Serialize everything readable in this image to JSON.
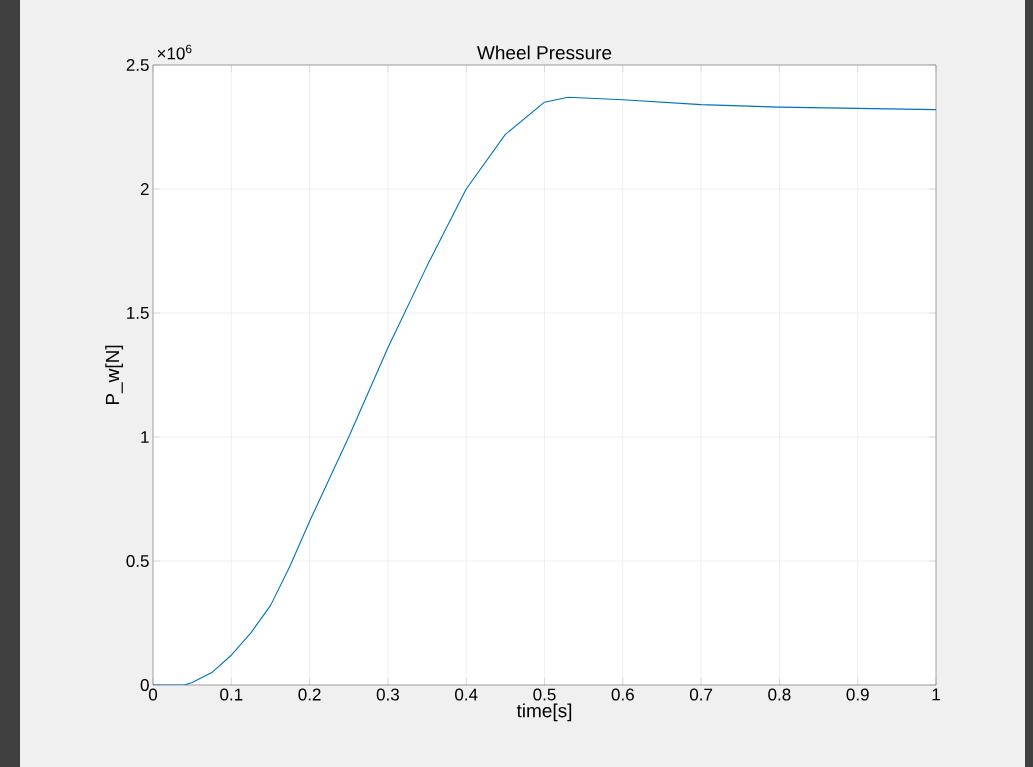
{
  "chart_data": {
    "type": "line",
    "title": "Wheel Pressure",
    "xlabel": "time[s]",
    "ylabel": "P_w[N]",
    "annotations": [
      "×10$^{6}$"
    ],
    "x": [
      0,
      0.04,
      0.05,
      0.075,
      0.1,
      0.125,
      0.15,
      0.175,
      0.2,
      0.25,
      0.3,
      0.35,
      0.4,
      0.45,
      0.5,
      0.53,
      0.6,
      0.7,
      0.8,
      0.9,
      1.0
    ],
    "series": [
      {
        "color": "#0072bd",
        "values": [
          0,
          0,
          0.01,
          0.05,
          0.12,
          0.21,
          0.32,
          0.48,
          0.66,
          1.0,
          1.36,
          1.69,
          2.0,
          2.22,
          2.35,
          2.37,
          2.36,
          2.34,
          2.33,
          2.325,
          2.32
        ]
      }
    ],
    "xlim": [
      0,
      1
    ],
    "ylim": [
      0,
      2.5
    ],
    "xticks": [
      0,
      0.1,
      0.2,
      0.3,
      0.4,
      0.5,
      0.6,
      0.7,
      0.8,
      0.9,
      1
    ],
    "yticks": [
      0,
      0.5,
      1,
      1.5,
      2,
      2.5
    ],
    "grid": true
  }
}
